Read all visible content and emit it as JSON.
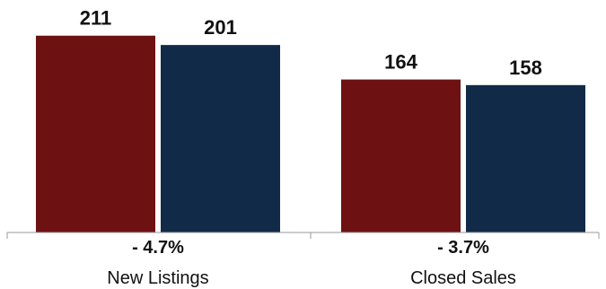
{
  "chart_data": {
    "type": "bar",
    "categories": [
      "New Listings",
      "Closed Sales"
    ],
    "series": [
      {
        "values": [
          211,
          164
        ]
      },
      {
        "values": [
          201,
          158
        ]
      }
    ],
    "changes": [
      "- 4.7%",
      "- 3.7%"
    ],
    "colors": [
      "#6e1113",
      "#112a48"
    ],
    "ylim": [
      0,
      230
    ],
    "grid": false,
    "legend": "none"
  }
}
